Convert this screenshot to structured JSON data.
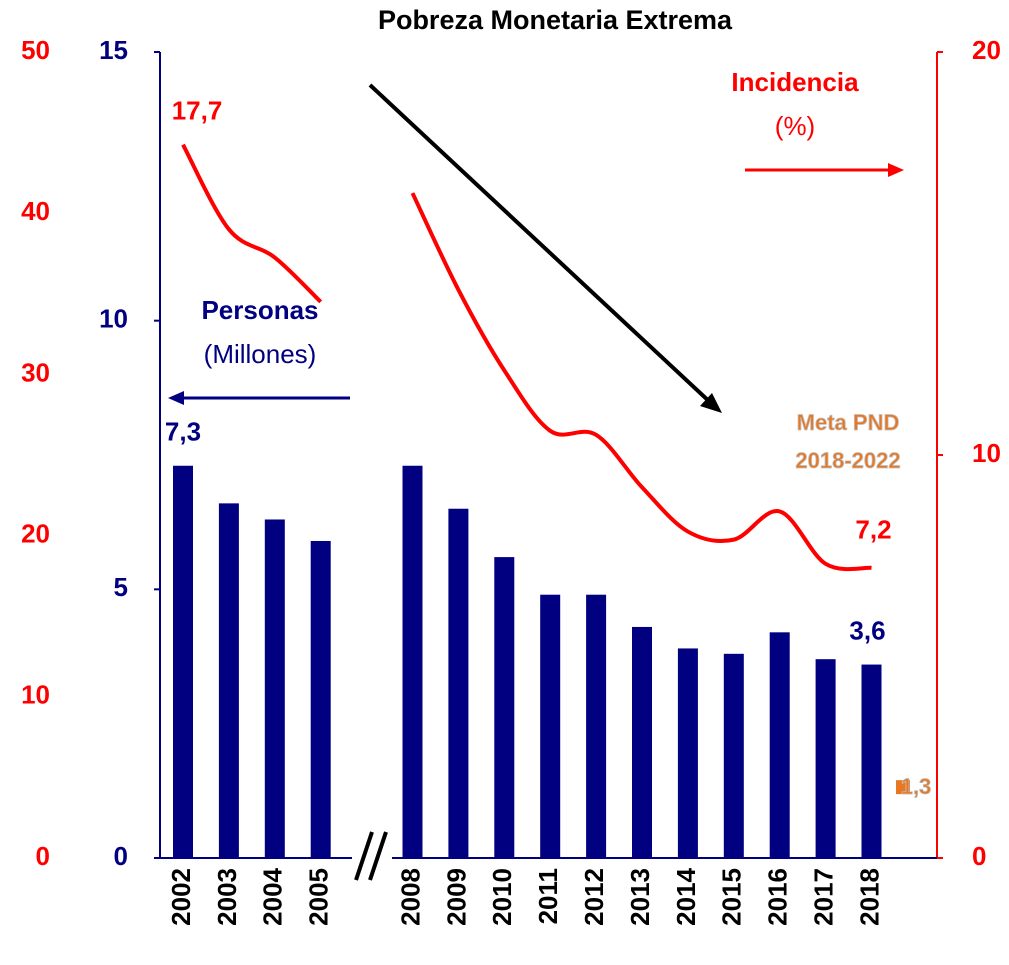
{
  "chart_data": {
    "type": "bar_line",
    "title": "Pobreza Monetaria Extrema",
    "categories": [
      "2002",
      "2003",
      "2004",
      "2005",
      null,
      "2008",
      "2009",
      "2010",
      "2011",
      "2012",
      "2013",
      "2014",
      "2015",
      "2016",
      "2017",
      "2018"
    ],
    "series": [
      {
        "name": "Personas",
        "unit_label": "(Millones)",
        "color": "#000080",
        "kind": "bar",
        "values": [
          7.3,
          6.6,
          6.3,
          5.9,
          null,
          7.3,
          6.5,
          5.6,
          4.9,
          4.9,
          4.3,
          3.9,
          3.8,
          4.2,
          3.7,
          3.6
        ],
        "value_labels": [
          "7,3",
          null,
          null,
          null,
          null,
          null,
          null,
          null,
          null,
          null,
          null,
          null,
          null,
          null,
          null,
          "3,6"
        ]
      },
      {
        "name": "Incidencia",
        "unit_label": "(%)",
        "color": "#ff0000",
        "kind": "line",
        "axis": "y2",
        "values": [
          17.7,
          15.6,
          14.9,
          13.8,
          null,
          16.5,
          14.1,
          12.1,
          10.6,
          10.5,
          9.2,
          8.1,
          7.9,
          8.6,
          7.3,
          7.2
        ],
        "value_labels": [
          "17,7",
          null,
          null,
          null,
          null,
          null,
          null,
          null,
          null,
          null,
          null,
          null,
          null,
          null,
          null,
          "7,2"
        ]
      }
    ],
    "ylim": [
      0,
      15
    ],
    "yticks": [
      0,
      5,
      10,
      15
    ],
    "y2lim": [
      0,
      20
    ],
    "y2ticks": [
      0,
      10,
      20
    ],
    "y3lim": [
      0,
      50
    ],
    "y3ticks": [
      0,
      10,
      20,
      30,
      40,
      50
    ],
    "meta": {
      "label": [
        "Meta PND",
        "2018-2022"
      ],
      "value": 1.3,
      "value_label": "1,3",
      "color": "#e87722"
    }
  }
}
